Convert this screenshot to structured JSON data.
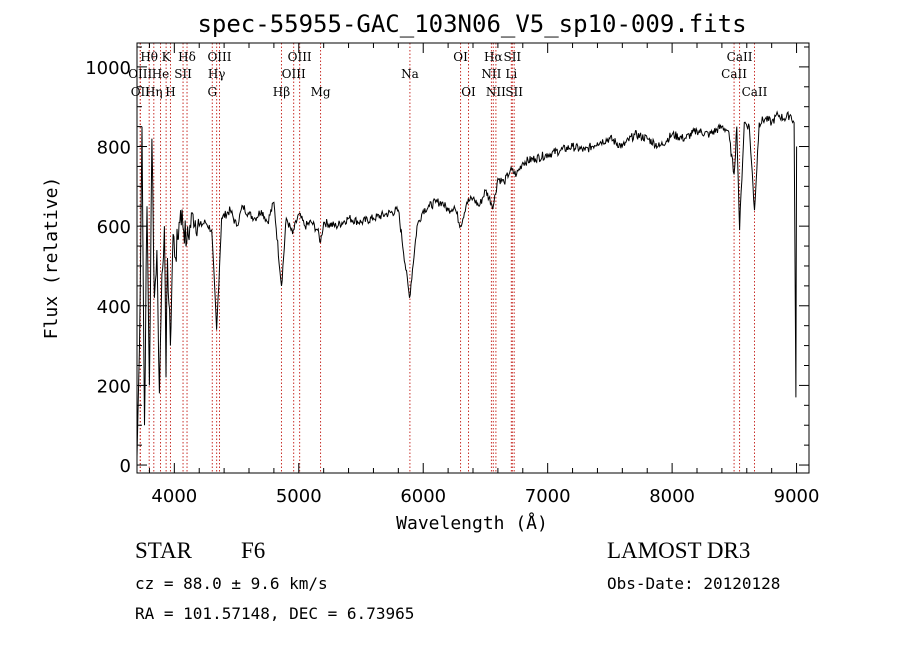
{
  "chart_data": {
    "type": "line",
    "title": "spec-55955-GAC_103N06_V5_sp10-009.fits",
    "xlabel": "Wavelength (Å)",
    "ylabel": "Flux (relative)",
    "xlim": [
      3700,
      9100
    ],
    "ylim": [
      -20,
      1060
    ],
    "xticks": [
      4000,
      5000,
      6000,
      7000,
      8000,
      9000
    ],
    "xticks_minor_step": 200,
    "yticks": [
      0,
      200,
      400,
      600,
      800,
      1000
    ],
    "yticks_minor_step": 50,
    "grid": false,
    "series": [
      {
        "name": "flux",
        "x": [
          3700,
          3720,
          3740,
          3760,
          3780,
          3800,
          3820,
          3840,
          3860,
          3880,
          3900,
          3920,
          3933,
          3945,
          3968,
          3990,
          4010,
          4050,
          4100,
          4150,
          4200,
          4250,
          4300,
          4340,
          4380,
          4450,
          4500,
          4550,
          4600,
          4650,
          4700,
          4750,
          4800,
          4861,
          4900,
          4950,
          5000,
          5050,
          5100,
          5150,
          5175,
          5200,
          5300,
          5400,
          5500,
          5600,
          5700,
          5800,
          5890,
          5950,
          6000,
          6050,
          6100,
          6150,
          6200,
          6250,
          6300,
          6350,
          6400,
          6450,
          6500,
          6563,
          6600,
          6650,
          6700,
          6750,
          6800,
          6900,
          7000,
          7100,
          7200,
          7300,
          7400,
          7500,
          7600,
          7700,
          7800,
          7900,
          8000,
          8100,
          8200,
          8300,
          8400,
          8450,
          8498,
          8520,
          8542,
          8580,
          8620,
          8662,
          8700,
          8750,
          8800,
          8850,
          8900,
          8950,
          8980,
          8995,
          9000
        ],
        "values": [
          20,
          300,
          850,
          100,
          650,
          200,
          820,
          420,
          540,
          180,
          480,
          600,
          220,
          520,
          300,
          580,
          520,
          640,
          560,
          630,
          600,
          610,
          590,
          340,
          620,
          640,
          600,
          650,
          630,
          620,
          640,
          610,
          660,
          450,
          620,
          580,
          630,
          600,
          610,
          590,
          560,
          610,
          600,
          620,
          610,
          620,
          630,
          640,
          420,
          600,
          640,
          650,
          660,
          660,
          640,
          650,
          600,
          660,
          670,
          650,
          690,
          650,
          720,
          710,
          740,
          730,
          760,
          770,
          780,
          790,
          800,
          790,
          810,
          820,
          800,
          830,
          820,
          800,
          830,
          820,
          840,
          830,
          850,
          840,
          730,
          850,
          590,
          860,
          850,
          640,
          860,
          870,
          860,
          880,
          870,
          880,
          860,
          170,
          800
        ]
      }
    ],
    "annotations": [
      {
        "label": "OII",
        "x": 3727,
        "row": 2
      },
      {
        "label": "Hθ",
        "x": 3798,
        "row": 0
      },
      {
        "label": "OIII",
        "x": 3726,
        "row": 1
      },
      {
        "label": "Hη",
        "x": 3835,
        "row": 2
      },
      {
        "label": "He",
        "x": 3889,
        "row": 1
      },
      {
        "label": "K",
        "x": 3934,
        "row": 0
      },
      {
        "label": "H",
        "x": 3969,
        "row": 2
      },
      {
        "label": "SII",
        "x": 4070,
        "row": 1
      },
      {
        "label": "Hδ",
        "x": 4102,
        "row": 0
      },
      {
        "label": "OIII",
        "x": 4363,
        "row": 0
      },
      {
        "label": "Hγ",
        "x": 4340,
        "row": 1
      },
      {
        "label": "G",
        "x": 4305,
        "row": 2
      },
      {
        "label": "Hβ",
        "x": 4861,
        "row": 2
      },
      {
        "label": "OIII",
        "x": 5007,
        "row": 0
      },
      {
        "label": "OIII",
        "x": 4959,
        "row": 1
      },
      {
        "label": "Mg",
        "x": 5175,
        "row": 2
      },
      {
        "label": "Na",
        "x": 5893,
        "row": 1
      },
      {
        "label": "OI",
        "x": 6300,
        "row": 0
      },
      {
        "label": "OI",
        "x": 6364,
        "row": 2
      },
      {
        "label": "Hα",
        "x": 6563,
        "row": 0
      },
      {
        "label": "NII",
        "x": 6548,
        "row": 1
      },
      {
        "label": "NII",
        "x": 6584,
        "row": 2
      },
      {
        "label": "SII",
        "x": 6716,
        "row": 0
      },
      {
        "label": "Li",
        "x": 6708,
        "row": 1
      },
      {
        "label": "SII",
        "x": 6731,
        "row": 2
      },
      {
        "label": "CaII",
        "x": 8542,
        "row": 0
      },
      {
        "label": "CaII",
        "x": 8498,
        "row": 1
      },
      {
        "label": "CaII",
        "x": 8662,
        "row": 2
      }
    ]
  },
  "info": {
    "class": "STAR",
    "subclass": "F6",
    "survey": "LAMOST DR3",
    "cz": "cz = 88.0 ± 9.6 km/s",
    "obs_date": "Obs-Date: 20120128",
    "radec": "RA = 101.57148, DEC =    6.73965"
  }
}
